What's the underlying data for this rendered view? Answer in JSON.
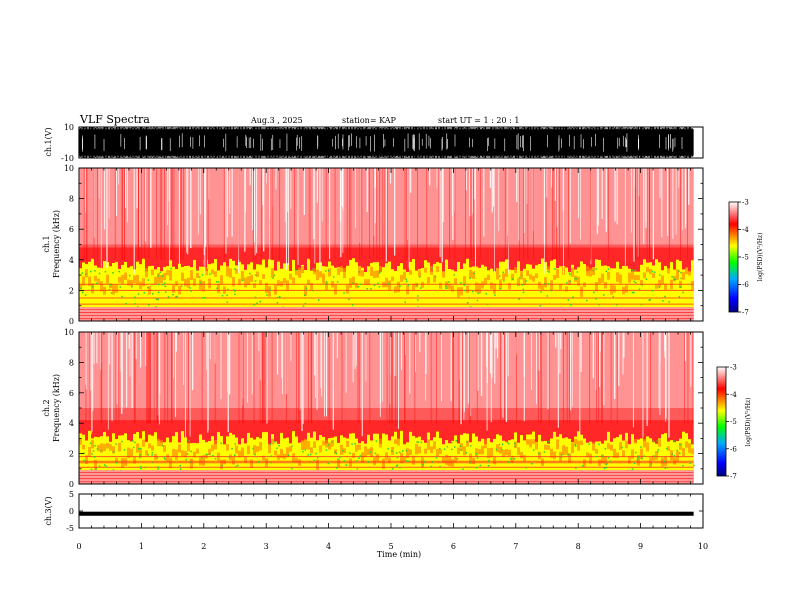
{
  "header": {
    "title": "VLF Spectra",
    "date": "Aug.3  , 2025",
    "station": "station= KAP",
    "start_ut": "start  UT  =    1  : 20 : 1"
  },
  "chart_data": {
    "type": "heatmap",
    "x": {
      "label": "Time  (min)",
      "range": [
        0,
        10
      ],
      "ticks": [
        "0",
        "1",
        "2",
        "3",
        "4",
        "5",
        "6",
        "7",
        "8",
        "9",
        "10"
      ],
      "data_end": 9.85
    },
    "panels": [
      {
        "id": "ch1-waveform",
        "kind": "waveform",
        "ylabel": "ch.1(V)",
        "ylim": [
          -10,
          10
        ],
        "yticks": [
          "10",
          "-10"
        ],
        "description_level": "saturated oscillation between about -10 and 10 V"
      },
      {
        "id": "ch1-spectrogram",
        "kind": "spectrogram",
        "ylabel": "ch.1\nFrequency  (kHz)",
        "ylabel_line1": "ch.1",
        "ylabel_line2": "Frequency  (kHz)",
        "ylim": [
          0,
          10
        ],
        "yticks": [
          "0",
          "2",
          "4",
          "6",
          "8",
          "10"
        ],
        "band_top_khz": 3.6,
        "colorbar": {
          "label": "log(PSD)(V²/Hz)",
          "range": [
            -7,
            -3
          ],
          "ticks": [
            "-3",
            "-4",
            "-5",
            "-6",
            "-7"
          ]
        }
      },
      {
        "id": "ch2-spectrogram",
        "kind": "spectrogram",
        "ylabel_line1": "ch.2",
        "ylabel_line2": "Frequency  (kHz)",
        "ylim": [
          0,
          10
        ],
        "yticks": [
          "0",
          "2",
          "4",
          "6",
          "8",
          "10"
        ],
        "band_top_khz": 3.0,
        "colorbar": {
          "label": "log(PSD)(V²/Hz)",
          "range": [
            -7,
            -3
          ],
          "ticks": [
            "-3",
            "-4",
            "-5",
            "-6",
            "-7"
          ]
        }
      },
      {
        "id": "ch3-waveform",
        "kind": "waveform",
        "ylabel": "ch.3(V)",
        "ylim": [
          -5,
          5
        ],
        "yticks": [
          "5",
          "0",
          "-5"
        ],
        "signal_band_v": [
          -1.4,
          -0.2
        ]
      }
    ],
    "colorscale": [
      "#000080",
      "#0000ff",
      "#00aaff",
      "#00ff00",
      "#ffff00",
      "#ff0000",
      "#ffffff"
    ]
  }
}
